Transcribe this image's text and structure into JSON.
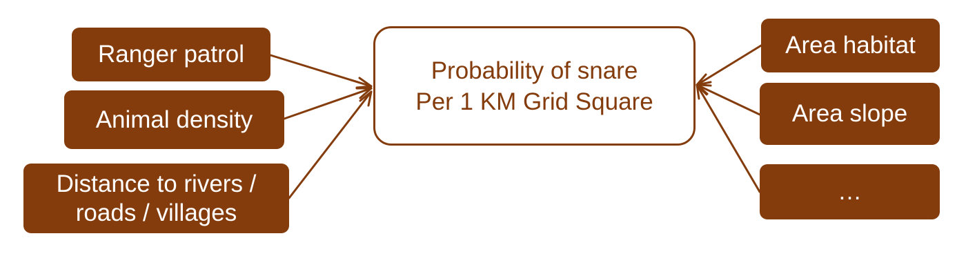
{
  "colors": {
    "node_fill": "#843c0c",
    "node_text": "#ffffff",
    "center_border": "#843c0c",
    "center_text": "#843c0c",
    "arrow": "#843c0c"
  },
  "center": {
    "line1": "Probability of snare",
    "line2": "Per 1 KM Grid Square"
  },
  "left_factors": {
    "ranger_patrol": "Ranger patrol",
    "animal_density": "Animal density",
    "distance_line1": "Distance to rivers /",
    "distance_line2": "roads / villages"
  },
  "right_factors": {
    "area_habitat": "Area habitat",
    "area_slope": "Area slope",
    "more": "…"
  }
}
